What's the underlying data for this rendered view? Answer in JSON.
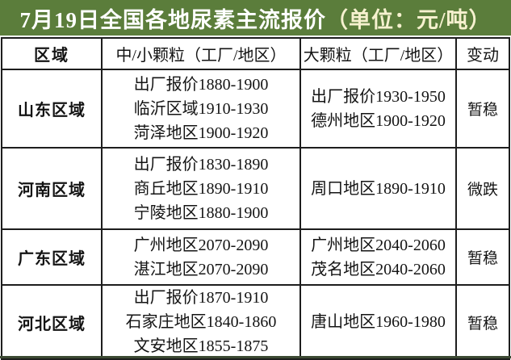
{
  "title": {
    "main": "7月19日全国各地尿素主流报价",
    "unit": "（单位：元/吨）"
  },
  "colors": {
    "title_bar_green": "#5b7d3b",
    "title_main_text": "#ffffff",
    "title_unit_text": "#f6f1cf",
    "table_border": "#1d1d1d",
    "cell_text": "#141414"
  },
  "table": {
    "headers": {
      "region": "区域",
      "small_granule": "中/小颗粒（工厂/地区）",
      "large_granule": "大颗粒（工厂/地区）",
      "change": "变动"
    },
    "rows": [
      {
        "region": "山东区域",
        "small": [
          "出厂报价1880-1900",
          "临沂区域1910-1930",
          "菏泽地区1900-1920"
        ],
        "large": [
          "出厂报价1930-1950",
          "德州地区1900-1920"
        ],
        "change": "暂稳"
      },
      {
        "region": "河南区域",
        "small": [
          "出厂报价1830-1890",
          "商丘地区1890-1910",
          "宁陵地区1880-1900"
        ],
        "large": [
          "周口地区1890-1910"
        ],
        "change": "微跌"
      },
      {
        "region": "广东区域",
        "small": [
          "广州地区2070-2090",
          "湛江地区2070-2090"
        ],
        "large": [
          "广州地区2040-2060",
          "茂名地区2040-2060"
        ],
        "change": "暂稳"
      },
      {
        "region": "河北区域",
        "small": [
          "出厂报价1870-1910",
          "石家庄地区1840-1860",
          "文安地区1855-1875"
        ],
        "large": [
          "唐山地区1960-1980"
        ],
        "change": "暂稳"
      }
    ]
  }
}
